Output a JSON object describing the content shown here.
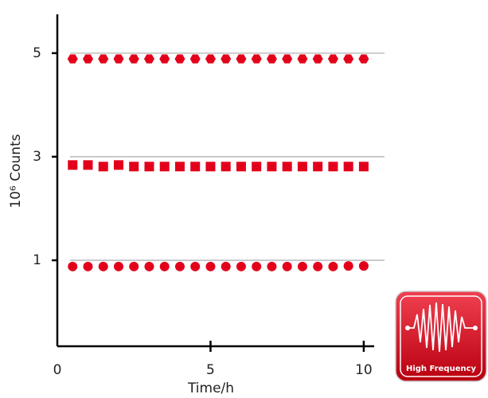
{
  "chart_data": {
    "type": "scatter",
    "x_label": "Time/h",
    "y_label": "10⁶ Counts",
    "xlim": [
      0,
      10.34
    ],
    "xticks": [
      0,
      5,
      10
    ],
    "ylim": [
      -0.66,
      5.75
    ],
    "yticks": [
      5,
      3,
      1
    ],
    "grid": true,
    "x": [
      0.5,
      1.0,
      1.5,
      2.0,
      2.5,
      3.0,
      3.5,
      4.0,
      4.5,
      5.0,
      5.5,
      6.0,
      6.5,
      7.0,
      7.5,
      8.0,
      8.5,
      9.0,
      9.5,
      10.0
    ],
    "series": [
      {
        "marker": "hexagon",
        "color": "#e3001b",
        "values": [
          4.89,
          4.89,
          4.89,
          4.89,
          4.89,
          4.89,
          4.89,
          4.89,
          4.89,
          4.89,
          4.89,
          4.89,
          4.89,
          4.89,
          4.89,
          4.89,
          4.89,
          4.89,
          4.89,
          4.89
        ]
      },
      {
        "marker": "square",
        "color": "#e3001b",
        "values": [
          2.84,
          2.84,
          2.81,
          2.84,
          2.81,
          2.81,
          2.81,
          2.81,
          2.81,
          2.81,
          2.81,
          2.81,
          2.81,
          2.81,
          2.81,
          2.81,
          2.81,
          2.81,
          2.81,
          2.81
        ]
      },
      {
        "marker": "circle",
        "color": "#e3001b",
        "values": [
          0.88,
          0.88,
          0.88,
          0.88,
          0.88,
          0.88,
          0.88,
          0.88,
          0.88,
          0.88,
          0.88,
          0.88,
          0.88,
          0.88,
          0.88,
          0.88,
          0.88,
          0.88,
          0.89,
          0.89
        ]
      }
    ],
    "badge_label": "High Frequency"
  }
}
